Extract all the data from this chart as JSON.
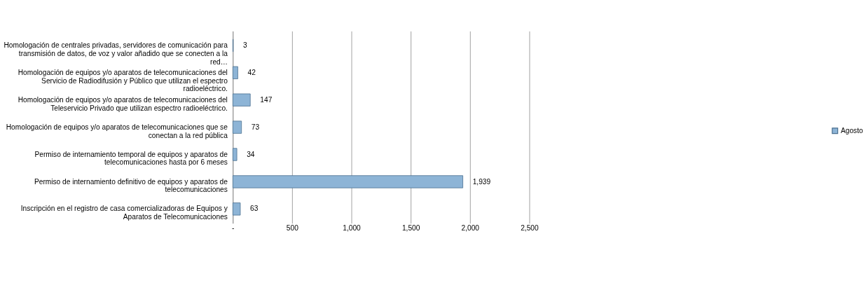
{
  "chart_data": {
    "type": "bar",
    "orientation": "horizontal",
    "categories": [
      "Homologación de centrales privadas, servidores de comunicación para transmisión de datos, de voz y valor añadido que se conecten a la red…",
      "Homologación de equipos y/o aparatos de telecomunicaciones del Servicio de Radiodifusión y Público que utilizan el espectro radioeléctrico.",
      "Homologación de equipos y/o aparatos de telecomunicaciones del Teleservicio Privado que utilizan espectro radioeléctrico.",
      "Homologación de equipos y/o aparatos de telecomunicaciones que se conectan a la red pública",
      "Permiso de internamiento temporal de equipos y aparatos de telecomunicaciones hasta por 6 meses",
      "Permiso de internamiento definitivo de equipos y aparatos de telecomunicaciones",
      "Inscripción en el registro de casa comercializadoras de Equipos y Aparatos de Telecomunicaciones"
    ],
    "series": [
      {
        "name": "Agosto",
        "color": "#8db4d6",
        "values": [
          3,
          42,
          147,
          73,
          34,
          1939,
          63
        ]
      }
    ],
    "xlim": [
      0,
      2500
    ],
    "xticks": [
      {
        "value": 0,
        "label": "-"
      },
      {
        "value": 500,
        "label": "500"
      },
      {
        "value": 1000,
        "label": "1,000"
      },
      {
        "value": 1500,
        "label": "1,500"
      },
      {
        "value": 2000,
        "label": "2,000"
      },
      {
        "value": 2500,
        "label": "2,500"
      }
    ],
    "value_labels": [
      "3",
      "42",
      "147",
      "73",
      "34",
      "1,939",
      "63"
    ],
    "grid": "x",
    "legend": "right"
  }
}
